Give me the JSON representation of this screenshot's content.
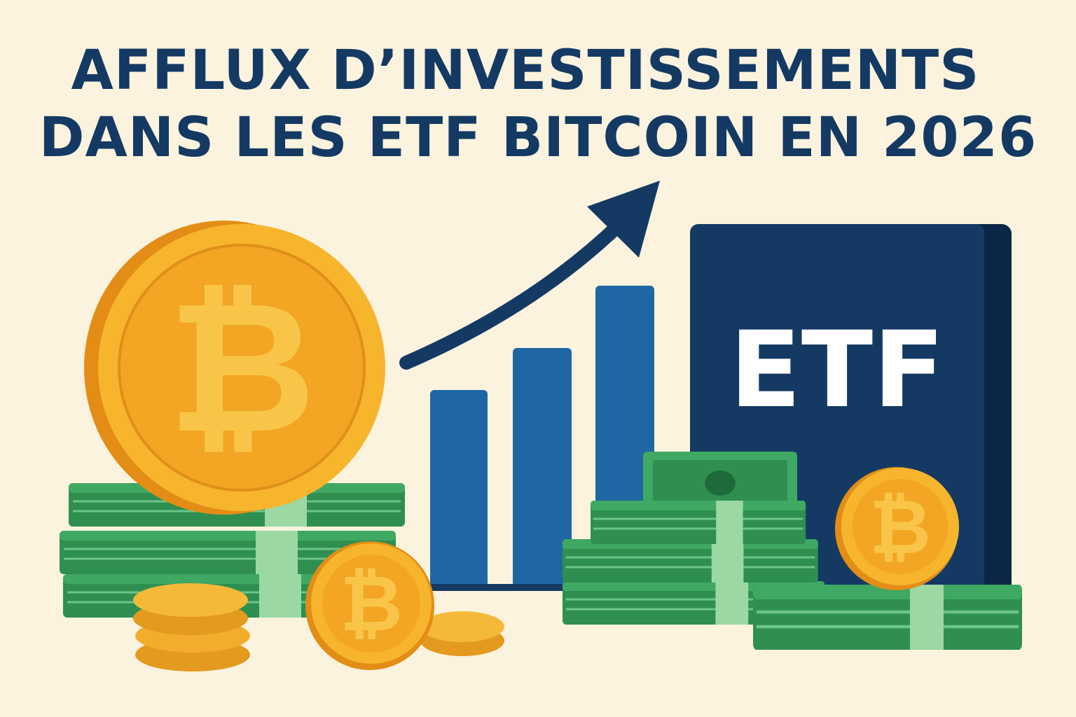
{
  "title": {
    "line1": "AFFLUX D’INVESTISSEMENTS",
    "line2": "DANS LES ETF BITCOIN EN 2026"
  },
  "etf_box": {
    "label": "ETF"
  },
  "coin_symbol": "₿",
  "colors": {
    "background": "#fbf3de",
    "title": "#143a63",
    "bars": "#1f67a3",
    "etf_box": "#143a63",
    "coin": "#f2a623",
    "money": "#2f9152"
  },
  "icons": [
    "bitcoin-coin-icon",
    "trend-arrow-icon",
    "bar-chart-icon",
    "banknote-stack-icon"
  ]
}
